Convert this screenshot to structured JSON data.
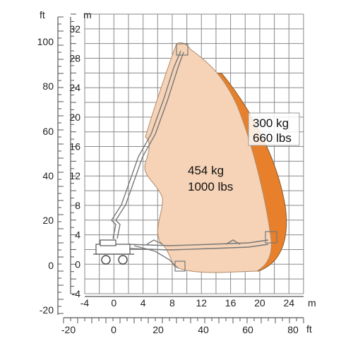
{
  "units": {
    "ft_left": "ft",
    "m_top": "m",
    "m_right": "m",
    "ft_bottom": "ft"
  },
  "ft_left_ticks": [
    "100",
    "80",
    "60",
    "40",
    "20",
    "0",
    "-20"
  ],
  "m_left_ticks": [
    "32",
    "28",
    "24",
    "20",
    "16",
    "12",
    "8",
    "4",
    "0",
    "-4"
  ],
  "m_bottom_ticks": [
    "-4",
    "0",
    "4",
    "8",
    "12",
    "16",
    "20",
    "24"
  ],
  "ft_bottom_ticks": [
    "-20",
    "0",
    "20",
    "40",
    "60",
    "80"
  ],
  "zones": {
    "light": {
      "label_line1": "454 kg",
      "label_line2": "1000 lbs",
      "color": "#f6d3b7"
    },
    "dark": {
      "label_line1": "300 kg",
      "label_line2": "660 lbs",
      "color": "#e8802b"
    }
  },
  "colors": {
    "grid": "#8a8a8a",
    "boom": "#8a8a8a",
    "chassis": "#666666"
  }
}
